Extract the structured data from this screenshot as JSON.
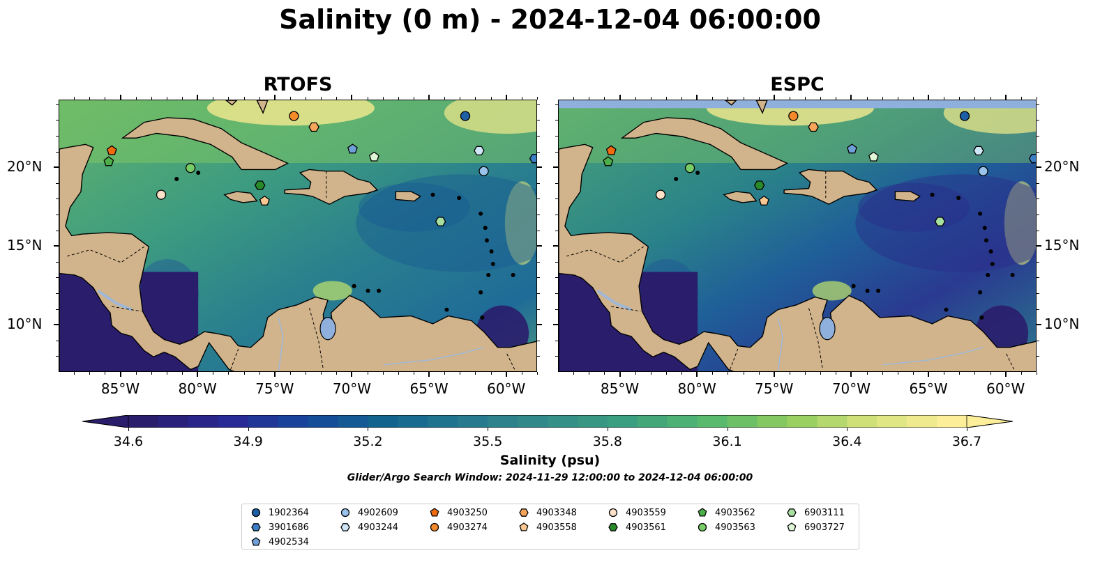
{
  "title": "Salinity (0 m) - 2024-12-04 06:00:00",
  "panels": [
    {
      "title": "RTOFS",
      "id": "rtofs"
    },
    {
      "title": "ESPC",
      "id": "espc"
    }
  ],
  "map": {
    "lon_range": [
      -89,
      -58
    ],
    "lat_range": [
      7,
      24.3
    ],
    "lon_ticks": [
      -85,
      -80,
      -75,
      -70,
      -65,
      -60
    ],
    "lon_tick_labels": [
      "85°W",
      "80°W",
      "75°W",
      "70°W",
      "65°W",
      "60°W"
    ],
    "lat_ticks": [
      10,
      15,
      20
    ],
    "lat_tick_labels": [
      "10°N",
      "15°N",
      "20°N"
    ],
    "land_color": "#d2b48c",
    "water_feature_color": "#8fb0dc"
  },
  "colorbar": {
    "min": 34.6,
    "max": 36.7,
    "ticks": [
      "34.6",
      "34.9",
      "35.2",
      "35.5",
      "35.8",
      "36.1",
      "36.4",
      "36.7"
    ],
    "label": "Salinity (psu)",
    "colormap": "haline",
    "colors": [
      "#2a1d6b",
      "#2a2894",
      "#16479b",
      "#12658f",
      "#277a8e",
      "#348c89",
      "#3aa07f",
      "#57b86e",
      "#8fcc5c",
      "#d7e37c",
      "#fdee99"
    ]
  },
  "search_window": "Glider/Argo Search Window: 2024-11-29 12:00:00 to 2024-12-04 06:00:00",
  "floats": [
    {
      "id": "1902364",
      "marker": "circle",
      "color": "#1f5fa5",
      "lon": -62.7,
      "lat": 23.3
    },
    {
      "id": "3901686",
      "marker": "hexagon",
      "color": "#3b7ec4",
      "lon": -58.2,
      "lat": 20.6
    },
    {
      "id": "4902534",
      "marker": "pentagon",
      "color": "#6fa0d8",
      "lon": -70.0,
      "lat": 21.2
    },
    {
      "id": "4902609",
      "marker": "circle",
      "color": "#99c3ea",
      "lon": -61.5,
      "lat": 19.8
    },
    {
      "id": "4903244",
      "marker": "hexagon",
      "color": "#cfe6f7",
      "lon": -61.8,
      "lat": 21.1
    },
    {
      "id": "4903250",
      "marker": "pentagon",
      "color": "#f06a10",
      "lon": -85.6,
      "lat": 21.1
    },
    {
      "id": "4903274",
      "marker": "circle",
      "color": "#f58a2a",
      "lon": -73.8,
      "lat": 23.3
    },
    {
      "id": "4903348",
      "marker": "hexagon",
      "color": "#f7a55a",
      "lon": -72.5,
      "lat": 22.6
    },
    {
      "id": "4903558",
      "marker": "pentagon",
      "color": "#fbc792",
      "lon": -75.7,
      "lat": 17.9
    },
    {
      "id": "4903559",
      "marker": "circle",
      "color": "#fde1c8",
      "lon": -82.4,
      "lat": 18.3
    },
    {
      "id": "4903561",
      "marker": "hexagon",
      "color": "#2a8a2a",
      "lon": -76.0,
      "lat": 18.9
    },
    {
      "id": "4903562",
      "marker": "pentagon",
      "color": "#4daf4a",
      "lon": -85.8,
      "lat": 20.4
    },
    {
      "id": "4903563",
      "marker": "circle",
      "color": "#77cc66",
      "lon": -80.5,
      "lat": 20.0
    },
    {
      "id": "6903111",
      "marker": "hexagon",
      "color": "#a8e0a0",
      "lon": -64.3,
      "lat": 16.6
    },
    {
      "id": "6903727",
      "marker": "pentagon",
      "color": "#dff6d6",
      "lon": -68.6,
      "lat": 20.7
    }
  ]
}
